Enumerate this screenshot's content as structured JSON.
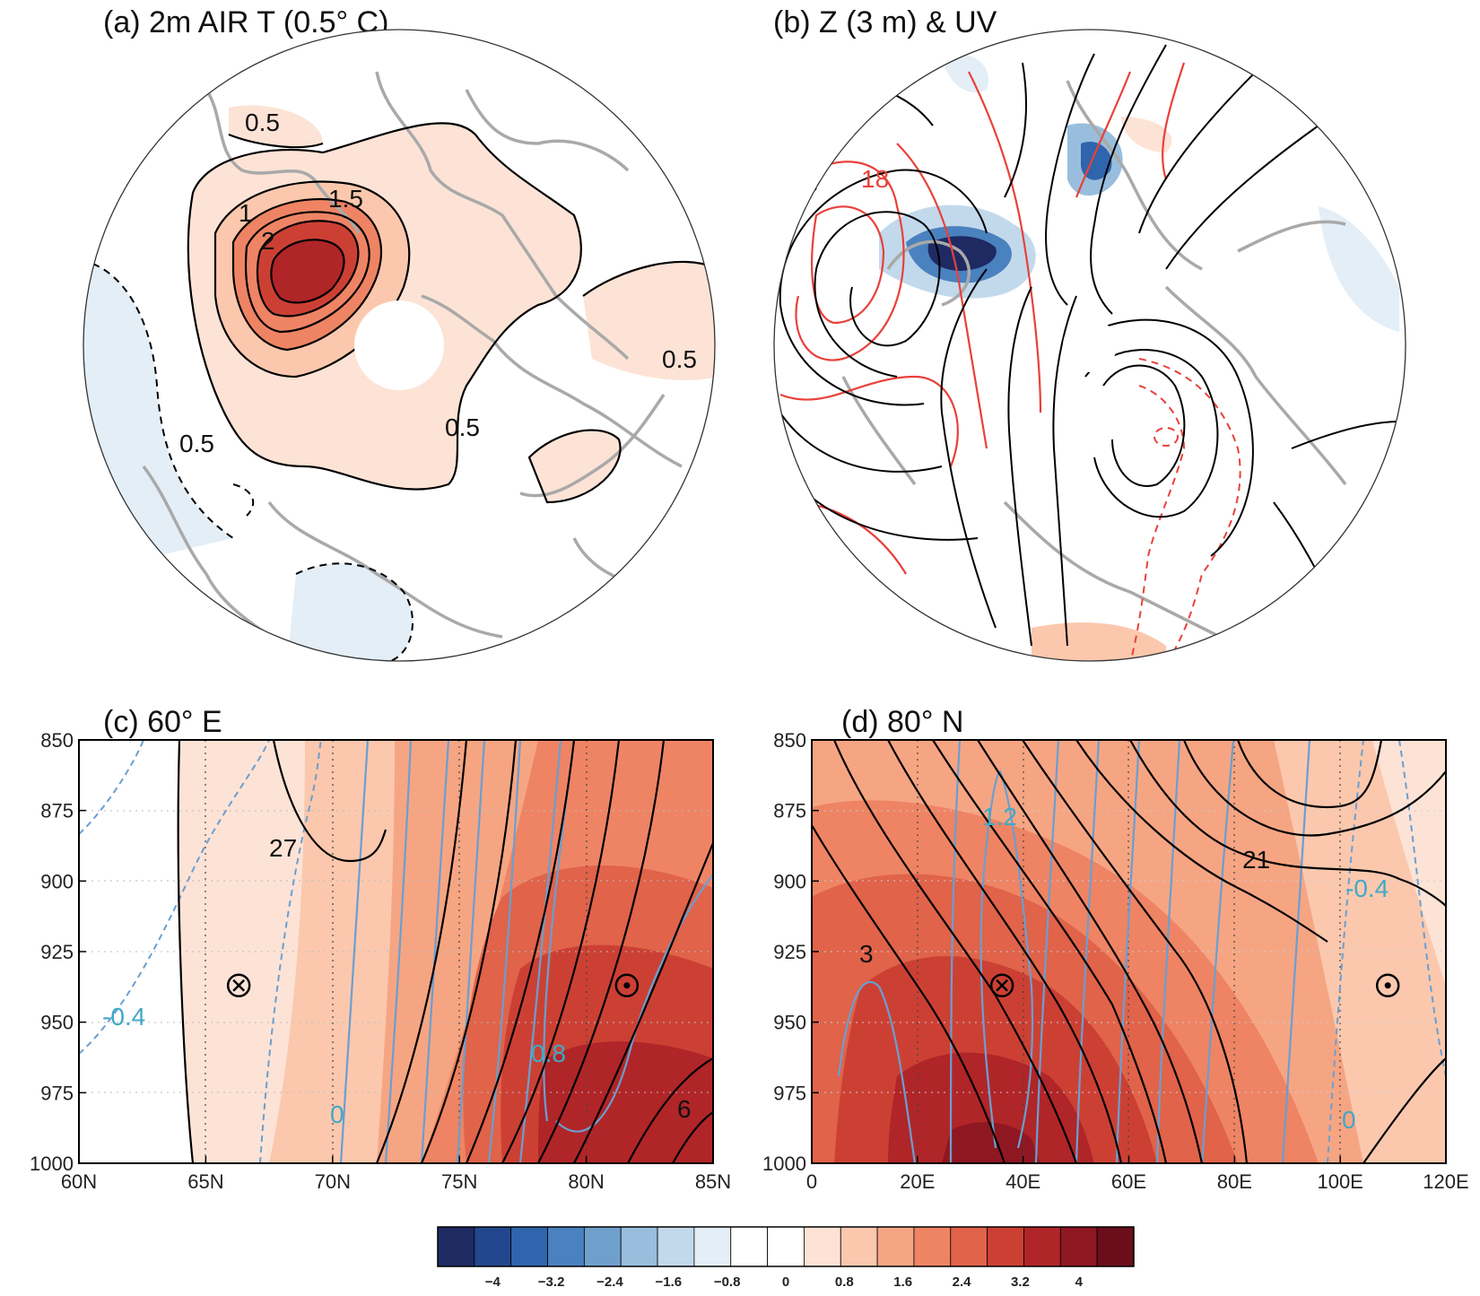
{
  "chart_data": [
    {
      "panel": "a",
      "type": "heatmap",
      "projection": "north-polar-stereographic",
      "title": "(a) 2m AIR T (0.5° C)",
      "contour_labels": [
        "0.5",
        "1",
        "1.5",
        "2",
        "0.5",
        "0.5",
        "0.5"
      ],
      "colors": {
        "coast": "#a9a9a9",
        "contour": "#000000"
      }
    },
    {
      "panel": "b",
      "type": "heatmap",
      "projection": "north-polar-stereographic",
      "title": "(b) Z (3 m) & UV",
      "contour_labels": [
        "18"
      ],
      "colors": {
        "coast": "#a9a9a9",
        "contour_positive": "#e8413a",
        "streamline": "#000000"
      }
    },
    {
      "panel": "c",
      "type": "heatmap",
      "title": "(c) 60° E",
      "x_ticks": [
        "60N",
        "65N",
        "70N",
        "75N",
        "80N",
        "85N"
      ],
      "x_values": [
        60,
        65,
        70,
        75,
        80,
        85
      ],
      "xlim": [
        60,
        85
      ],
      "y_ticks": [
        "850",
        "875",
        "900",
        "925",
        "950",
        "975",
        "1000"
      ],
      "y_values": [
        850,
        875,
        900,
        925,
        950,
        975,
        1000
      ],
      "ylim": [
        850,
        1000
      ],
      "y_inverted": true,
      "contour_labels_black": [
        "27",
        "6"
      ],
      "contour_labels_blue": [
        "-0.4",
        "0",
        "0.8"
      ],
      "markers": [
        {
          "symbol": "⊗",
          "x": 66.3,
          "y": 937
        },
        {
          "symbol": "⊙",
          "x": 81.6,
          "y": 937
        }
      ]
    },
    {
      "panel": "d",
      "type": "heatmap",
      "title": "(d) 80° N",
      "x_ticks": [
        "0",
        "20E",
        "40E",
        "60E",
        "80E",
        "100E",
        "120E"
      ],
      "x_values": [
        0,
        20,
        40,
        60,
        80,
        100,
        120
      ],
      "xlim": [
        0,
        120
      ],
      "y_ticks": [
        "850",
        "875",
        "900",
        "925",
        "950",
        "975",
        "1000"
      ],
      "y_values": [
        850,
        875,
        900,
        925,
        950,
        975,
        1000
      ],
      "ylim": [
        850,
        1000
      ],
      "y_inverted": true,
      "contour_labels_black": [
        "21",
        "3"
      ],
      "contour_labels_blue": [
        "1.2",
        "-0.4",
        "0"
      ],
      "markers": [
        {
          "symbol": "⊗",
          "x": 36,
          "y": 937
        },
        {
          "symbol": "⊙",
          "x": 109,
          "y": 937
        }
      ]
    }
  ],
  "colorbar": {
    "labels": [
      "-4",
      "-3.2",
      "-2.4",
      "-1.6",
      "-0.8",
      "0",
      "0.8",
      "1.6",
      "2.4",
      "3.2",
      "4"
    ],
    "colors": [
      "#1f2a63",
      "#23478f",
      "#2f65ad",
      "#4a81bf",
      "#6f9fcd",
      "#99bedd",
      "#c2d9ec",
      "#e4eef7",
      "#ffffff",
      "#ffffff",
      "#fde3d6",
      "#fbc8ae",
      "#f6a583",
      "#ee8464",
      "#e0634a",
      "#cc4034",
      "#b02528",
      "#8f1722",
      "#6b0e1b"
    ]
  },
  "colors": {
    "blue_contour": "#6a9fd0",
    "blue_label": "#3fa9c8"
  }
}
